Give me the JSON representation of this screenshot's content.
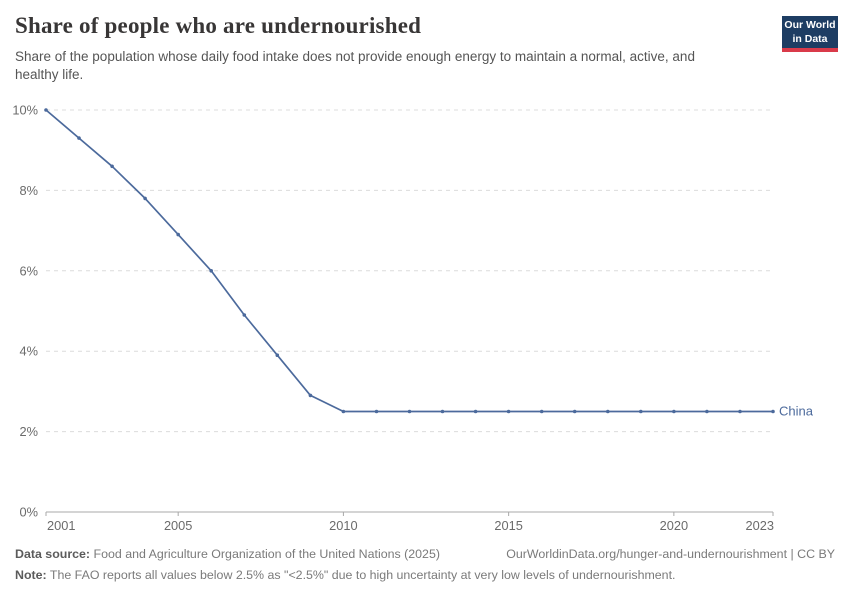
{
  "header": {
    "title": "Share of people who are undernourished",
    "subtitle": "Share of the population whose daily food intake does not provide enough energy to maintain a normal, active, and healthy life."
  },
  "logo": {
    "line1": "Our World",
    "line2": "in Data"
  },
  "chart_data": {
    "type": "line",
    "title": "Share of people who are undernourished",
    "x": [
      2001,
      2002,
      2003,
      2004,
      2005,
      2006,
      2007,
      2008,
      2009,
      2010,
      2011,
      2012,
      2013,
      2014,
      2015,
      2016,
      2017,
      2018,
      2019,
      2020,
      2021,
      2022,
      2023
    ],
    "series": [
      {
        "name": "China",
        "color": "#4c6a9c",
        "values": [
          10,
          9.3,
          8.6,
          7.8,
          6.9,
          6.0,
          4.9,
          3.9,
          2.9,
          2.5,
          2.5,
          2.5,
          2.5,
          2.5,
          2.5,
          2.5,
          2.5,
          2.5,
          2.5,
          2.5,
          2.5,
          2.5,
          2.5
        ]
      }
    ],
    "xticks": [
      2001,
      2005,
      2010,
      2015,
      2020,
      2023
    ],
    "yticks": [
      0,
      2,
      4,
      6,
      8,
      10
    ],
    "ytick_suffix": "%",
    "xlim": [
      2001,
      2023
    ],
    "ylim": [
      0,
      10
    ],
    "grid": "horizontal-dashed",
    "legend_position": "label-right-of-line"
  },
  "colors": {
    "line": "#4c6a9c",
    "grid": "#dcdcdc",
    "axis": "#a8a8a8",
    "tick_text": "#6b6b6b"
  },
  "footer": {
    "datasource_label": "Data source:",
    "datasource_text": " Food and Agriculture Organization of the United Nations (2025)",
    "attribution": "OurWorldinData.org/hunger-and-undernourishment | CC BY",
    "note_label": "Note:",
    "note_text": " The FAO reports all values below 2.5% as \"<2.5%\" due to high uncertainty at very low levels of undernourishment."
  }
}
